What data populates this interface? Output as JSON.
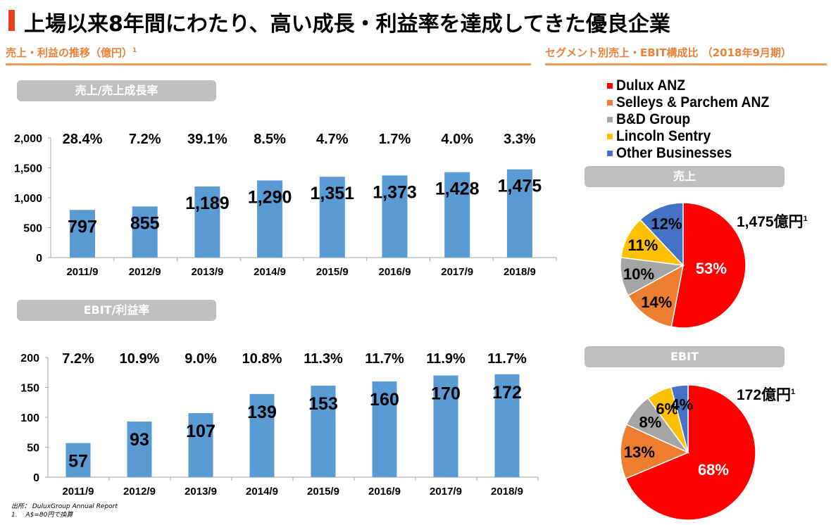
{
  "page": {
    "title": "上場以来8年間にわたり、高い成長・利益率を達成してきた優良企業",
    "left_section_title": "売上・利益の推移（億円）",
    "left_section_sup": "1",
    "right_section_title": "セグメント別売上・EBIT構成比 （2018年9月期）",
    "sales_pill": "売上/売上成長率",
    "ebit_pill": "EBIT/利益率",
    "pie_sales_pill": "売上",
    "pie_ebit_pill": "EBIT",
    "sales_total": "1,475億円",
    "ebit_total": "172億円",
    "total_sup": "1",
    "footnote_source": "出所： DuluxGroup Annual Report",
    "footnote_1": "1.　 A$=80円で換算"
  },
  "colors": {
    "bar": "#5b9bd5",
    "accent": "#e8823a",
    "title_bar": "#e8401c",
    "pill": "#bfbfbf",
    "segments": [
      "#ff0000",
      "#ed7d31",
      "#a5a5a5",
      "#ffc000",
      "#4472c4"
    ]
  },
  "legend": [
    {
      "label": "Dulux ANZ",
      "color": "#ff0000"
    },
    {
      "label": "Selleys & Parchem ANZ",
      "color": "#ed7d31"
    },
    {
      "label": "B&D Group",
      "color": "#a5a5a5"
    },
    {
      "label": "Lincoln Sentry",
      "color": "#ffc000"
    },
    {
      "label": "Other Businesses",
      "color": "#4472c4"
    }
  ],
  "chart_data": [
    {
      "type": "bar",
      "title": "売上/売上成長率",
      "categories": [
        "2011/9",
        "2012/9",
        "2013/9",
        "2014/9",
        "2015/9",
        "2016/9",
        "2017/9",
        "2018/9"
      ],
      "values": [
        797,
        855,
        1189,
        1290,
        1351,
        1373,
        1428,
        1475
      ],
      "value_labels": [
        "797",
        "855",
        "1,189",
        "1,290",
        "1,351",
        "1,373",
        "1,428",
        "1,475"
      ],
      "rate_labels": [
        "28.4%",
        "7.2%",
        "39.1%",
        "8.5%",
        "4.7%",
        "1.7%",
        "4.0%",
        "3.3%"
      ],
      "yticks": [
        "2,000",
        "1,500",
        "1,000",
        "500",
        "0"
      ],
      "ylim": [
        0,
        2000
      ],
      "ylabel": "",
      "xlabel": "",
      "grid": false
    },
    {
      "type": "bar",
      "title": "EBIT/利益率",
      "categories": [
        "2011/9",
        "2012/9",
        "2013/9",
        "2014/9",
        "2015/9",
        "2016/9",
        "2017/9",
        "2018/9"
      ],
      "values": [
        57,
        93,
        107,
        139,
        153,
        160,
        170,
        172
      ],
      "value_labels": [
        "57",
        "93",
        "107",
        "139",
        "153",
        "160",
        "170",
        "172"
      ],
      "rate_labels": [
        "7.2%",
        "10.9%",
        "9.0%",
        "10.8%",
        "11.3%",
        "11.7%",
        "11.9%",
        "11.7%"
      ],
      "yticks": [
        "200",
        "150",
        "100",
        "50",
        "0"
      ],
      "ylim": [
        0,
        200
      ],
      "ylabel": "",
      "xlabel": "",
      "grid": false
    },
    {
      "type": "pie",
      "title": "売上",
      "labels": [
        "Dulux ANZ",
        "Selleys & Parchem ANZ",
        "B&D Group",
        "Lincoln Sentry",
        "Other Businesses"
      ],
      "values": [
        53,
        14,
        10,
        11,
        12
      ],
      "value_labels": [
        "53%",
        "14%",
        "10%",
        "11%",
        "12%"
      ],
      "total": "1,475億円"
    },
    {
      "type": "pie",
      "title": "EBIT",
      "labels": [
        "Dulux ANZ",
        "Selleys & Parchem ANZ",
        "B&D Group",
        "Lincoln Sentry",
        "Other Businesses"
      ],
      "values": [
        68,
        13,
        8,
        6,
        4
      ],
      "value_labels": [
        "68%",
        "13%",
        "8%",
        "6%",
        "4%"
      ],
      "total": "172億円"
    }
  ]
}
